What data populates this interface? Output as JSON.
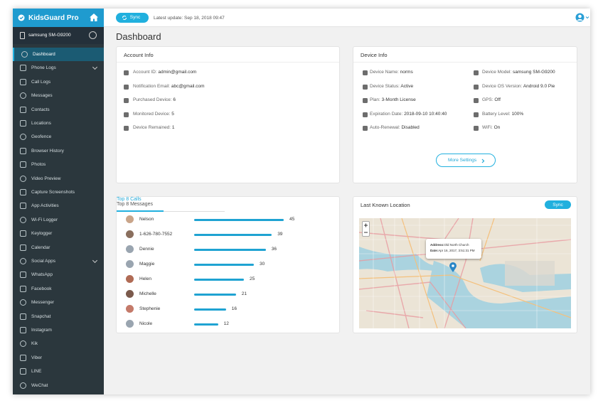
{
  "sidebar": {
    "brand": "KidsGuard Pro",
    "device": "samsung SM-G9200",
    "menu": [
      "Dashboard",
      "Phone Logs",
      "Call Logs",
      "Messages",
      "Contacts",
      "Locations",
      "Geofence",
      "Browser History",
      "Photos",
      "Video Preview",
      "Capture Screenshots",
      "App Activities",
      "Wi-Fi Logger",
      "Keylogger",
      "Calendar",
      "Social Apps",
      "WhatsApp",
      "Facebook",
      "Messenger",
      "Snapchat",
      "Instagram",
      "Kik",
      "Viber",
      "LINE",
      "WeChat"
    ]
  },
  "header": {
    "sync": "Sync",
    "last_update": "Latest update: Sep 18, 2018 09:47"
  },
  "page_title": "Dashboard",
  "account_info": {
    "title": "Account Info",
    "rows": [
      {
        "label": "Account ID:",
        "value": "admin@gmail.com"
      },
      {
        "label": "Notification Email:",
        "value": "abc@gmail.com"
      },
      {
        "label": "Purchased Device:",
        "value": 6
      },
      {
        "label": "Monitored Device:",
        "value": 5
      },
      {
        "label": "Device Remained:",
        "value": 1
      }
    ]
  },
  "device_info": {
    "title": "Device Info",
    "left": [
      {
        "label": "Device Name:",
        "value": "norms"
      },
      {
        "label": "Device Status:",
        "value": "Active"
      },
      {
        "label": "Plan:",
        "value": "3-Month License"
      },
      {
        "label": "Expiration Date:",
        "value": "2018-09-10 10:40:40"
      },
      {
        "label": "Auto-Renewal:",
        "value": "Disabled"
      }
    ],
    "right": [
      {
        "label": "Device Model:",
        "value": "samsung SM-G9200"
      },
      {
        "label": "Device OS Version:",
        "value": "Android 9.0 Pie"
      },
      {
        "label": "GPS:",
        "value": "Off"
      },
      {
        "label": "Battery Level:",
        "value": "100%"
      },
      {
        "label": "WiFi:",
        "value": "On"
      }
    ],
    "button": "More Settings"
  },
  "top_calls": {
    "tabs": [
      "Top 8 Calls",
      "Top 8 Messages"
    ],
    "names": [
      "Nelson",
      "1-626-780-7552",
      "Dennie",
      "Maggie",
      "Helen",
      "Michelle",
      "Stephenie",
      "Nicole"
    ],
    "values": [
      45,
      39,
      36,
      30,
      25,
      21,
      16,
      12
    ]
  },
  "location": {
    "title": "Last Known Location",
    "sync": "Sync",
    "popup": {
      "address_label": "Address:",
      "address": "Old North Church",
      "date_label": "Date:",
      "date": "Apr 16, 2017, 3:51:31 PM"
    }
  }
}
